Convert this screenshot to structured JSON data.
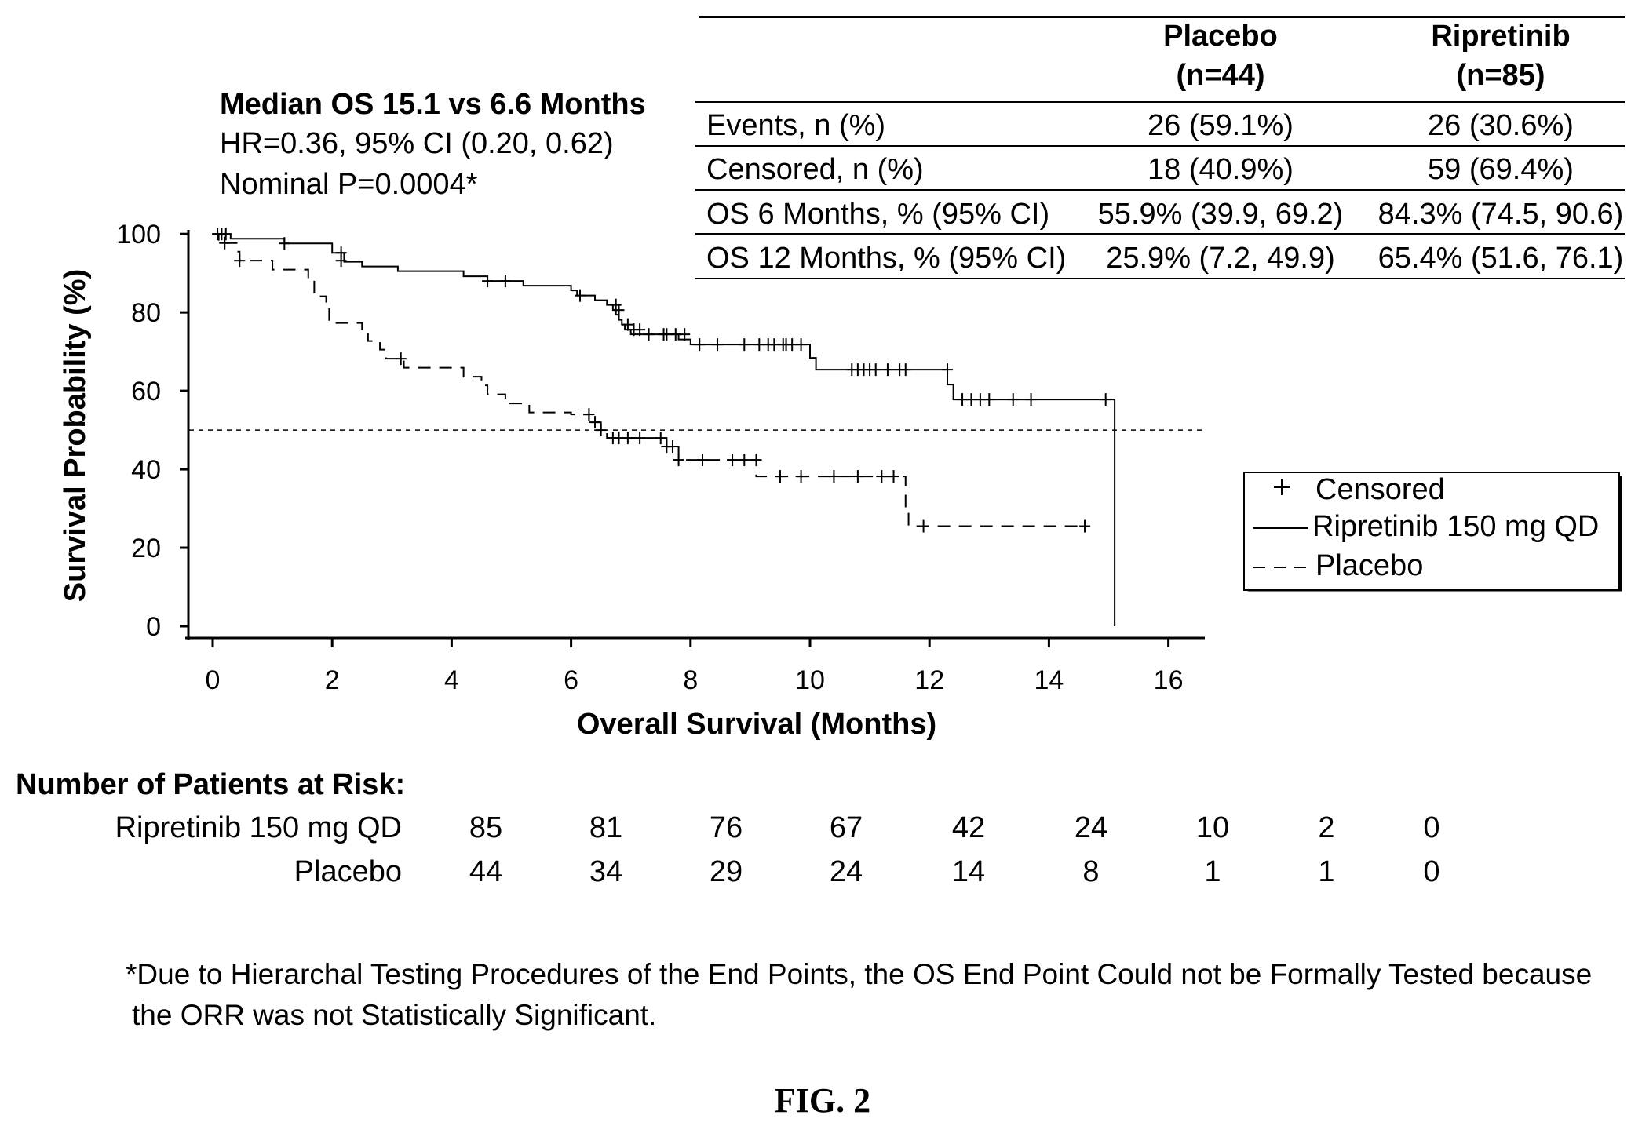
{
  "header": {
    "line1": "Median OS 15.1 vs 6.6 Months",
    "line2": "HR=0.36, 95% CI (0.20, 0.62)",
    "line3": "Nominal P=0.0004*"
  },
  "summary_table": {
    "columns": [
      {
        "line1": "Placebo",
        "line2": "(n=44)"
      },
      {
        "line1": "Ripretinib",
        "line2": "(n=85)"
      }
    ],
    "rows": [
      {
        "label": "Events, n (%)",
        "placebo": "26 (59.1%)",
        "ripretinib": "26 (30.6%)"
      },
      {
        "label": "Censored, n (%)",
        "placebo": "18 (40.9%)",
        "ripretinib": "59 (69.4%)"
      },
      {
        "label": "OS 6 Months, % (95% CI)",
        "placebo": "55.9% (39.9, 69.2)",
        "ripretinib": "84.3% (74.5, 90.6)"
      },
      {
        "label": "OS 12 Months, % (95% CI)",
        "placebo": "25.9% (7.2, 49.9)",
        "ripretinib": "65.4% (51.6, 76.1)"
      }
    ]
  },
  "legend": {
    "censored": "Censored",
    "ripretinib": "Ripretinib 150 mg QD",
    "placebo": "Placebo"
  },
  "at_risk": {
    "title": "Number of Patients at Risk:",
    "rows": [
      {
        "label": "Ripretinib 150 mg QD",
        "values": [
          "85",
          "81",
          "76",
          "67",
          "42",
          "24",
          "10",
          "2",
          "0"
        ]
      },
      {
        "label": "Placebo",
        "values": [
          "44",
          "34",
          "29",
          "24",
          "14",
          "8",
          "1",
          "1",
          "0"
        ]
      }
    ]
  },
  "footnote": {
    "line1": "*Due to Hierarchal Testing Procedures of the End Points, the OS End Point Could not be Formally Tested because",
    "line2": "the ORR was not Statistically Significant."
  },
  "figure_label": "FIG. 2",
  "chart_data": {
    "type": "line",
    "xlabel": "Overall Survival (Months)",
    "ylabel": "Survival Probability (%)",
    "xlim": [
      -0.4,
      16.5
    ],
    "ylim": [
      -3,
      100
    ],
    "x_ticks": [
      "0",
      "2",
      "4",
      "6",
      "8",
      "10",
      "12",
      "14",
      "16"
    ],
    "y_ticks": [
      "0",
      "20",
      "40",
      "60",
      "80",
      "100"
    ],
    "reference_line_y": 50,
    "series": [
      {
        "name": "Ripretinib 150 mg QD",
        "style": "solid",
        "steps": [
          [
            0,
            100
          ],
          [
            0.3,
            98.8
          ],
          [
            1.2,
            97.6
          ],
          [
            2.0,
            95.2
          ],
          [
            2.2,
            92.9
          ],
          [
            2.5,
            91.7
          ],
          [
            3.1,
            90.5
          ],
          [
            4.2,
            89.2
          ],
          [
            4.6,
            88.0
          ],
          [
            5.2,
            86.8
          ],
          [
            6.0,
            85.6
          ],
          [
            6.1,
            84.3
          ],
          [
            6.4,
            83.1
          ],
          [
            6.6,
            81.9
          ],
          [
            6.7,
            80.6
          ],
          [
            6.75,
            79.4
          ],
          [
            6.8,
            78.1
          ],
          [
            6.85,
            76.9
          ],
          [
            6.9,
            75.6
          ],
          [
            7.0,
            74.4
          ],
          [
            7.8,
            73.1
          ],
          [
            8.0,
            71.8
          ],
          [
            10.0,
            68.4
          ],
          [
            10.1,
            65.4
          ],
          [
            12.3,
            61.6
          ],
          [
            12.4,
            57.8
          ],
          [
            15.05,
            57.8
          ],
          [
            15.1,
            0
          ]
        ],
        "censored": [
          [
            0.08,
            100
          ],
          [
            0.15,
            100
          ],
          [
            0.22,
            100
          ],
          [
            1.2,
            97.6
          ],
          [
            2.15,
            95.2
          ],
          [
            4.6,
            88.0
          ],
          [
            4.9,
            88.0
          ],
          [
            6.15,
            84.3
          ],
          [
            6.75,
            81.9
          ],
          [
            6.8,
            80.6
          ],
          [
            6.95,
            76.9
          ],
          [
            7.05,
            75.6
          ],
          [
            7.15,
            75.6
          ],
          [
            7.3,
            74.4
          ],
          [
            7.55,
            74.4
          ],
          [
            7.6,
            74.4
          ],
          [
            7.75,
            74.4
          ],
          [
            7.9,
            74.4
          ],
          [
            8.15,
            71.8
          ],
          [
            8.45,
            71.8
          ],
          [
            8.9,
            71.8
          ],
          [
            9.15,
            71.8
          ],
          [
            9.3,
            71.8
          ],
          [
            9.4,
            71.8
          ],
          [
            9.55,
            71.8
          ],
          [
            9.6,
            71.8
          ],
          [
            9.7,
            71.8
          ],
          [
            9.85,
            71.8
          ],
          [
            10.7,
            65.4
          ],
          [
            10.8,
            65.4
          ],
          [
            10.9,
            65.4
          ],
          [
            11.0,
            65.4
          ],
          [
            11.1,
            65.4
          ],
          [
            11.3,
            65.4
          ],
          [
            11.5,
            65.4
          ],
          [
            11.6,
            65.4
          ],
          [
            12.3,
            65.4
          ],
          [
            12.55,
            57.8
          ],
          [
            12.7,
            57.8
          ],
          [
            12.85,
            57.8
          ],
          [
            13.0,
            57.8
          ],
          [
            13.4,
            57.8
          ],
          [
            13.7,
            57.8
          ],
          [
            14.95,
            57.8
          ]
        ]
      },
      {
        "name": "Placebo",
        "style": "dashed",
        "steps": [
          [
            0,
            100
          ],
          [
            0.1,
            97.7
          ],
          [
            0.4,
            95.5
          ],
          [
            0.45,
            93.2
          ],
          [
            1.0,
            90.9
          ],
          [
            1.6,
            88.6
          ],
          [
            1.7,
            84.1
          ],
          [
            1.9,
            81.8
          ],
          [
            1.95,
            77.3
          ],
          [
            2.5,
            75.0
          ],
          [
            2.6,
            72.7
          ],
          [
            2.8,
            70.5
          ],
          [
            2.9,
            68.2
          ],
          [
            3.2,
            65.9
          ],
          [
            4.2,
            63.6
          ],
          [
            4.5,
            61.4
          ],
          [
            4.6,
            59.1
          ],
          [
            4.9,
            56.8
          ],
          [
            5.3,
            54.5
          ],
          [
            6.0,
            54.0
          ],
          [
            6.3,
            52.0
          ],
          [
            6.5,
            50.0
          ],
          [
            6.6,
            48.0
          ],
          [
            7.6,
            45.8
          ],
          [
            7.8,
            42.4
          ],
          [
            9.1,
            38.2
          ],
          [
            11.6,
            30.0
          ],
          [
            11.65,
            25.5
          ],
          [
            14.6,
            25.5
          ]
        ],
        "censored": [
          [
            0.2,
            97.7
          ],
          [
            0.45,
            93.2
          ],
          [
            2.15,
            93.2
          ],
          [
            3.15,
            68.2
          ],
          [
            6.3,
            54.0
          ],
          [
            6.4,
            52.0
          ],
          [
            6.5,
            50.0
          ],
          [
            6.7,
            48.0
          ],
          [
            6.8,
            48.0
          ],
          [
            6.95,
            48.0
          ],
          [
            7.15,
            48.0
          ],
          [
            7.5,
            48.0
          ],
          [
            7.6,
            45.8
          ],
          [
            7.7,
            45.8
          ],
          [
            7.8,
            42.4
          ],
          [
            8.2,
            42.4
          ],
          [
            8.7,
            42.4
          ],
          [
            8.9,
            42.4
          ],
          [
            9.1,
            42.4
          ],
          [
            9.5,
            38.2
          ],
          [
            9.85,
            38.2
          ],
          [
            10.4,
            38.2
          ],
          [
            10.8,
            38.2
          ],
          [
            11.2,
            38.2
          ],
          [
            11.4,
            38.2
          ],
          [
            11.9,
            25.5
          ],
          [
            14.6,
            25.5
          ]
        ]
      }
    ]
  }
}
